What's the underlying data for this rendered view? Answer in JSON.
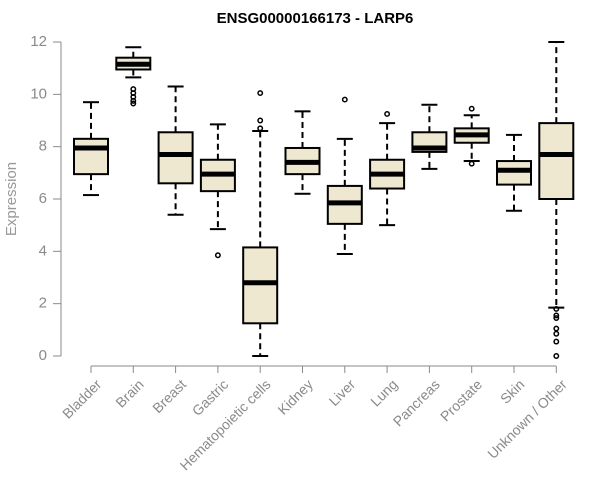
{
  "chart_data": {
    "type": "boxplot",
    "title": "ENSG00000166173 - LARP6",
    "xlabel": "",
    "ylabel": "Expression",
    "ylim": [
      0,
      12
    ],
    "yticks": [
      0,
      2,
      4,
      6,
      8,
      10,
      12
    ],
    "box_fill": "#EEE8D0",
    "box_stroke": "#000000",
    "categories": [
      "Bladder",
      "Brain",
      "Breast",
      "Gastric",
      "Hematopoietic cells",
      "Kidney",
      "Liver",
      "Lung",
      "Pancreas",
      "Prostate",
      "Skin",
      "Unknown / Other"
    ],
    "boxes": [
      {
        "name": "Bladder",
        "min": 6.15,
        "q1": 6.95,
        "median": 7.95,
        "q3": 8.3,
        "max": 9.7,
        "outliers": []
      },
      {
        "name": "Brain",
        "min": 10.65,
        "q1": 10.95,
        "median": 11.15,
        "q3": 11.4,
        "max": 11.8,
        "outliers": [
          10.2,
          10.05,
          9.9,
          9.75,
          9.65
        ]
      },
      {
        "name": "Breast",
        "min": 5.4,
        "q1": 6.6,
        "median": 7.7,
        "q3": 8.55,
        "max": 10.3,
        "outliers": []
      },
      {
        "name": "Gastric",
        "min": 4.85,
        "q1": 6.3,
        "median": 6.95,
        "q3": 7.5,
        "max": 8.85,
        "outliers": [
          3.85
        ]
      },
      {
        "name": "Hematopoietic cells",
        "min": 0.0,
        "q1": 1.25,
        "median": 2.8,
        "q3": 4.15,
        "max": 8.6,
        "outliers": [
          10.05,
          9.0,
          8.7
        ]
      },
      {
        "name": "Kidney",
        "min": 6.2,
        "q1": 6.95,
        "median": 7.4,
        "q3": 7.95,
        "max": 9.35,
        "outliers": []
      },
      {
        "name": "Liver",
        "min": 3.9,
        "q1": 5.05,
        "median": 5.85,
        "q3": 6.5,
        "max": 8.3,
        "outliers": [
          9.8
        ]
      },
      {
        "name": "Lung",
        "min": 5.0,
        "q1": 6.4,
        "median": 6.95,
        "q3": 7.5,
        "max": 8.9,
        "outliers": [
          9.25
        ]
      },
      {
        "name": "Pancreas",
        "min": 7.15,
        "q1": 7.8,
        "median": 7.95,
        "q3": 8.55,
        "max": 9.6,
        "outliers": []
      },
      {
        "name": "Prostate",
        "min": 7.45,
        "q1": 8.15,
        "median": 8.45,
        "q3": 8.7,
        "max": 9.2,
        "outliers": [
          9.45,
          7.35
        ]
      },
      {
        "name": "Skin",
        "min": 5.55,
        "q1": 6.55,
        "median": 7.1,
        "q3": 7.45,
        "max": 8.45,
        "outliers": []
      },
      {
        "name": "Unknown / Other",
        "min": 1.85,
        "q1": 6.0,
        "median": 7.7,
        "q3": 8.9,
        "max": 12.0,
        "outliers": [
          1.8,
          1.55,
          1.45,
          1.05,
          0.85,
          0.55,
          0.0
        ]
      }
    ]
  }
}
